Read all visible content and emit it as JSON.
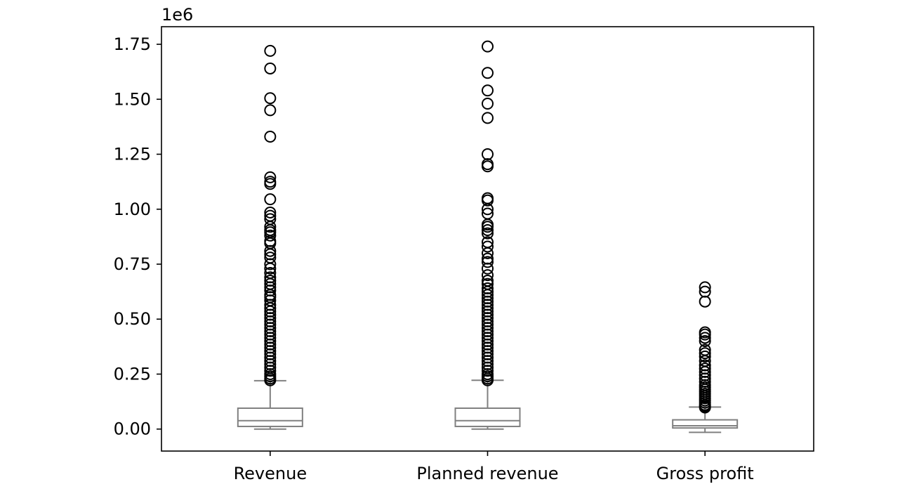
{
  "chart_data": {
    "type": "boxplot",
    "title": "",
    "xlabel": "",
    "ylabel": "",
    "y_offset_label": "1e6",
    "ylim": [
      -0.1,
      1.83
    ],
    "y_ticks": [
      0.0,
      0.25,
      0.5,
      0.75,
      1.0,
      1.25,
      1.5,
      1.75
    ],
    "y_tick_labels": [
      "0.00",
      "0.25",
      "0.50",
      "0.75",
      "1.00",
      "1.25",
      "1.50",
      "1.75"
    ],
    "grid": false,
    "colors": {
      "box": "#808080",
      "outlier": "#000000",
      "axes": "#000000"
    },
    "categories": [
      "Revenue",
      "Planned revenue",
      "Gross profit"
    ],
    "boxes": [
      {
        "label": "Revenue",
        "whisker_low": 0.0,
        "q1": 0.012,
        "median": 0.038,
        "q3": 0.095,
        "whisker_high": 0.22,
        "outliers": [
          1.72,
          1.64,
          1.505,
          1.45,
          1.33,
          1.145,
          1.125,
          1.115,
          1.045,
          0.985,
          0.97,
          0.955,
          0.92,
          0.905,
          0.895,
          0.88,
          0.855,
          0.845,
          0.81,
          0.795,
          0.78,
          0.75,
          0.73,
          0.71,
          0.69,
          0.675,
          0.66,
          0.645,
          0.63,
          0.61,
          0.6,
          0.585,
          0.565,
          0.55,
          0.535,
          0.52,
          0.505,
          0.49,
          0.475,
          0.46,
          0.445,
          0.43,
          0.415,
          0.4,
          0.385,
          0.37,
          0.355,
          0.34,
          0.325,
          0.31,
          0.295,
          0.28,
          0.265,
          0.25,
          0.24,
          0.23,
          0.222
        ]
      },
      {
        "label": "Planned revenue",
        "whisker_low": 0.0,
        "q1": 0.012,
        "median": 0.038,
        "q3": 0.095,
        "whisker_high": 0.222,
        "outliers": [
          1.74,
          1.62,
          1.54,
          1.48,
          1.415,
          1.25,
          1.205,
          1.195,
          1.05,
          1.04,
          1.0,
          0.98,
          0.93,
          0.92,
          0.905,
          0.89,
          0.85,
          0.83,
          0.8,
          0.775,
          0.76,
          0.73,
          0.7,
          0.675,
          0.66,
          0.64,
          0.625,
          0.61,
          0.595,
          0.58,
          0.565,
          0.55,
          0.535,
          0.52,
          0.505,
          0.49,
          0.475,
          0.46,
          0.445,
          0.43,
          0.415,
          0.4,
          0.385,
          0.37,
          0.355,
          0.34,
          0.325,
          0.31,
          0.295,
          0.28,
          0.265,
          0.25,
          0.24,
          0.23,
          0.222
        ]
      },
      {
        "label": "Gross profit",
        "whisker_low": -0.015,
        "q1": 0.005,
        "median": 0.015,
        "q3": 0.042,
        "whisker_high": 0.1,
        "outliers": [
          0.645,
          0.625,
          0.58,
          0.44,
          0.43,
          0.415,
          0.4,
          0.36,
          0.345,
          0.33,
          0.31,
          0.29,
          0.275,
          0.26,
          0.245,
          0.23,
          0.215,
          0.2,
          0.19,
          0.18,
          0.17,
          0.16,
          0.15,
          0.14,
          0.13,
          0.12,
          0.11,
          0.104,
          0.098
        ]
      }
    ]
  }
}
